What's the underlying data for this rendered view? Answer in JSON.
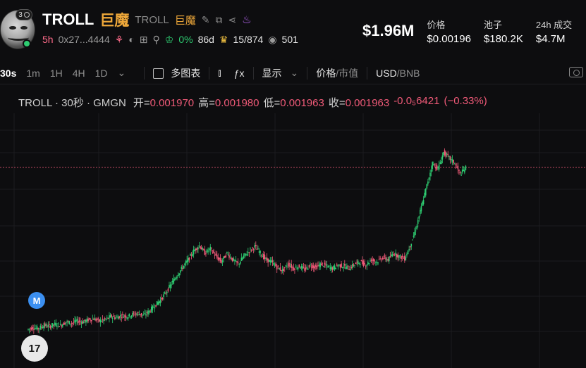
{
  "token": {
    "symbol": "TROLL",
    "cn_name": "巨魔",
    "sub_symbol": "TROLL",
    "sub_cn_name": "巨魔",
    "avatar_badge": "3",
    "age": "5h",
    "address": "0x27...4444",
    "percent": "0%",
    "days": "86d",
    "holders_rank": "15/874",
    "views": "501"
  },
  "stats": {
    "market_cap": "$1.96M",
    "items": [
      {
        "label": "价格",
        "value": "$0.00196"
      },
      {
        "label": "池子",
        "value": "$180.2K"
      },
      {
        "label": "24h 成交",
        "value": "$4.7M"
      }
    ]
  },
  "toolbar": {
    "intervals": [
      "30s",
      "1m",
      "1H",
      "4H",
      "1D"
    ],
    "active_interval": "30s",
    "multi_chart": "多图表",
    "display": "显示",
    "price": "价格",
    "mcap": "市值",
    "usd": "USD",
    "bnb": "BNB"
  },
  "legend": {
    "name": "TROLL · 30秒 · GMGN",
    "open_label": "开=",
    "open": "0.001970",
    "high_label": "高=",
    "high": "0.001980",
    "low_label": "低=",
    "low": "0.001963",
    "close_label": "收=",
    "close": "0.001963",
    "change": "-0.0₅6421",
    "change_pct": "(−0.33%)"
  },
  "markers": {
    "m": "M",
    "tv": "17"
  },
  "colors": {
    "up": "#2ecc71",
    "down": "#f05a78",
    "background": "#0d0d0f",
    "accent": "#f0a93a"
  },
  "chart_data": {
    "type": "candlestick",
    "interval": "30s",
    "last_price": 0.001963,
    "series": [
      {
        "name": "TROLL",
        "values": [
          0.00048,
          0.0005,
          0.00049,
          0.00052,
          0.00051,
          0.00053,
          0.00052,
          0.00055,
          0.00054,
          0.00056,
          0.00055,
          0.00057,
          0.00058,
          0.00056,
          0.00057,
          0.0006,
          0.00059,
          0.00061,
          0.0006,
          0.00062,
          0.00063,
          0.00061,
          0.00065,
          0.0007,
          0.00075,
          0.00082,
          0.0009,
          0.00098,
          0.00105,
          0.00112,
          0.0012,
          0.00125,
          0.00118,
          0.00122,
          0.00115,
          0.0011,
          0.00118,
          0.00112,
          0.00108,
          0.00115,
          0.0012,
          0.00124,
          0.00118,
          0.00112,
          0.0011,
          0.00105,
          0.00102,
          0.00108,
          0.00104,
          0.00106,
          0.00103,
          0.00107,
          0.00105,
          0.00108,
          0.00106,
          0.00104,
          0.00107,
          0.00106,
          0.00104,
          0.00108,
          0.0011,
          0.00107,
          0.00112,
          0.0011,
          0.00114,
          0.00112,
          0.00118,
          0.00115,
          0.00113,
          0.00125,
          0.0014,
          0.0016,
          0.0018,
          0.002,
          0.00195,
          0.0021,
          0.00205,
          0.002,
          0.0019,
          0.00196
        ]
      }
    ]
  }
}
